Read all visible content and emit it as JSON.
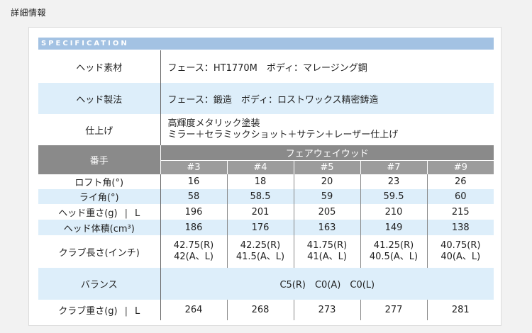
{
  "page_heading": "詳細情報",
  "spec_title": "SPECIFICATION",
  "rows": {
    "head_material": {
      "label": "ヘッド素材",
      "value": "フェース：HT1770M　ボディ：マレージング鋼"
    },
    "head_method": {
      "label": "ヘッド製法",
      "value": "フェース：鍛造　ボディ：ロストワックス精密鋳造"
    },
    "finish": {
      "label": "仕上げ",
      "value_line1": "高輝度メタリック塗装",
      "value_line2": "ミラー＋セラミックショット＋サテン＋レーザー仕上げ"
    },
    "number": {
      "label": "番手",
      "group": "フェアウェイウッド",
      "models": [
        "#3",
        "#4",
        "#5",
        "#7",
        "#9"
      ]
    },
    "loft": {
      "label": "ロフト角(°)",
      "values": [
        "16",
        "18",
        "20",
        "23",
        "26"
      ]
    },
    "lie": {
      "label": "ライ角(°)",
      "values": [
        "58",
        "58.5",
        "59",
        "59.5",
        "60"
      ]
    },
    "head_weight": {
      "label": "ヘッド重さ(g)",
      "flex": "L",
      "values": [
        "196",
        "201",
        "205",
        "210",
        "215"
      ]
    },
    "head_volume": {
      "label": "ヘッド体積(cm³)",
      "values": [
        "186",
        "176",
        "163",
        "149",
        "138"
      ]
    },
    "club_length": {
      "label": "クラブ長さ(インチ)",
      "values_r": [
        "42.75(R)",
        "42.25(R)",
        "41.75(R)",
        "41.25(R)",
        "40.75(R)"
      ],
      "values_al": [
        "42(A、L)",
        "41.5(A、L)",
        "41(A、L)",
        "40.5(A、L)",
        "40(A、L)"
      ]
    },
    "balance": {
      "label": "バランス",
      "value": "C5(R)　C0(A)　C0(L)"
    },
    "club_weight": {
      "label": "クラブ重さ(g)",
      "flex": "L",
      "values": [
        "264",
        "268",
        "273",
        "277",
        "281"
      ]
    }
  }
}
